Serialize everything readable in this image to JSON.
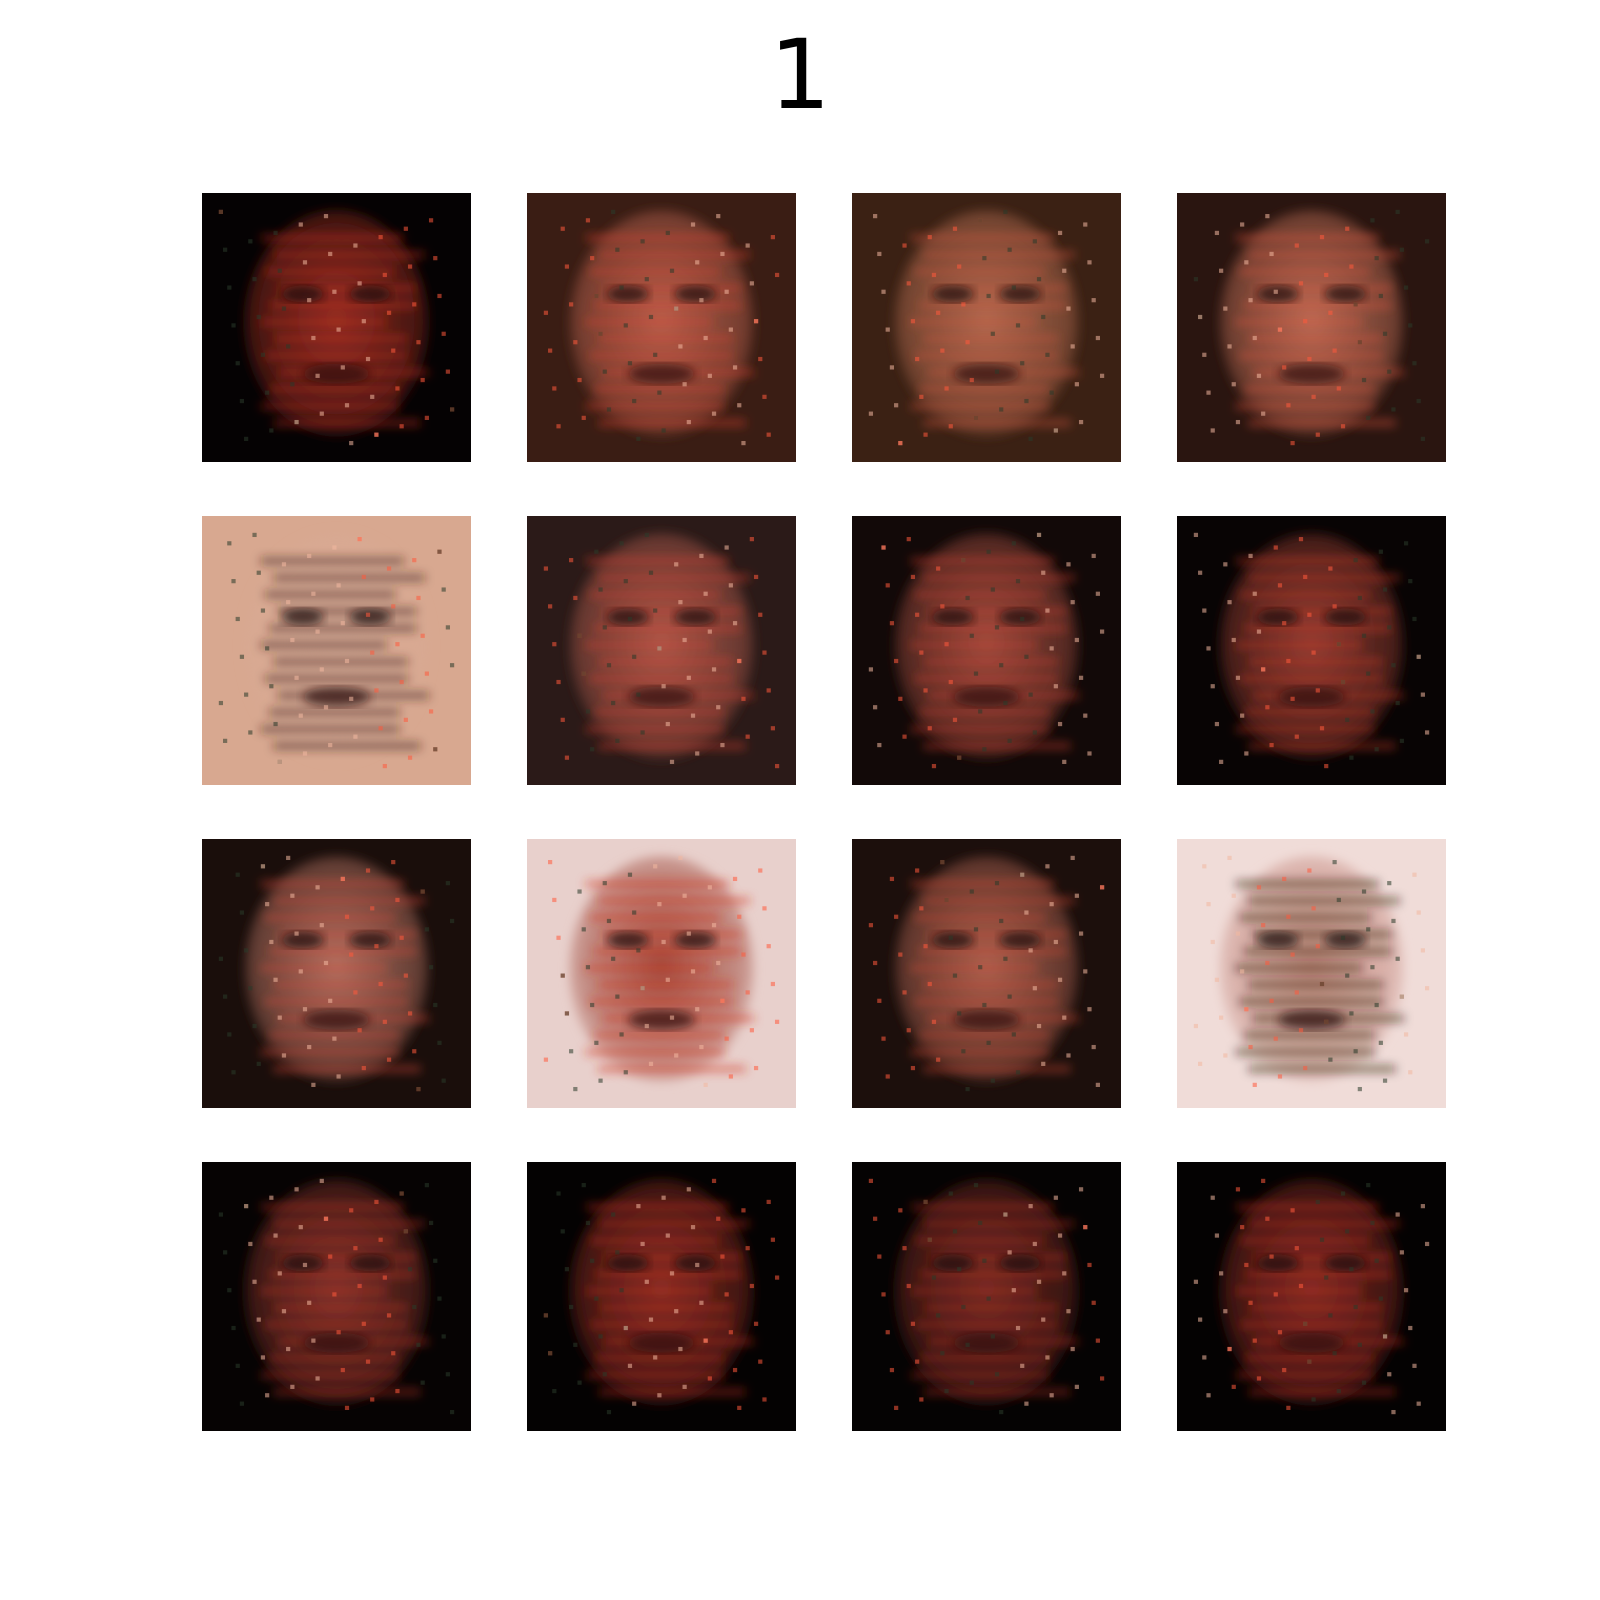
{
  "title": "1",
  "grid": {
    "rows": 4,
    "cols": 4
  },
  "samples": [
    {
      "kind": "generated-face-sample",
      "tone": "dark",
      "bg": "#050203",
      "face": "#8a2a1e",
      "accent": "#e0301e",
      "brightness": 0.35
    },
    {
      "kind": "generated-face-sample",
      "tone": "warm",
      "bg": "#3a1d14",
      "face": "#b5604d",
      "accent": "#d84030",
      "brightness": 0.6
    },
    {
      "kind": "generated-face-sample",
      "tone": "warm",
      "bg": "#3b2114",
      "face": "#b06a4f",
      "accent": "#c9533e",
      "brightness": 0.62
    },
    {
      "kind": "generated-face-sample",
      "tone": "warm",
      "bg": "#2a1510",
      "face": "#b86b54",
      "accent": "#d9543c",
      "brightness": 0.6
    },
    {
      "kind": "generated-face-sample",
      "tone": "pale",
      "bg": "#d8a890",
      "face": "#d9aa94",
      "accent": "#3b2620",
      "brightness": 0.8
    },
    {
      "kind": "generated-face-sample",
      "tone": "warm",
      "bg": "#2b1a18",
      "face": "#a8584a",
      "accent": "#d84030",
      "brightness": 0.55
    },
    {
      "kind": "generated-face-sample",
      "tone": "warm",
      "bg": "#120908",
      "face": "#9a4a3d",
      "accent": "#d6402e",
      "brightness": 0.5
    },
    {
      "kind": "generated-face-sample",
      "tone": "dark",
      "bg": "#080404",
      "face": "#8c3a30",
      "accent": "#d83a2a",
      "brightness": 0.42
    },
    {
      "kind": "generated-face-sample",
      "tone": "warm",
      "bg": "#1a0e0b",
      "face": "#b07060",
      "accent": "#d54a38",
      "brightness": 0.58
    },
    {
      "kind": "generated-face-sample",
      "tone": "bright",
      "bg": "#e8d0cc",
      "face": "#a04a3c",
      "accent": "#d03828",
      "brightness": 0.7
    },
    {
      "kind": "generated-face-sample",
      "tone": "warm",
      "bg": "#1c0f0c",
      "face": "#a8604f",
      "accent": "#d24a36",
      "brightness": 0.55
    },
    {
      "kind": "generated-face-sample",
      "tone": "bright",
      "bg": "#f0dcd8",
      "face": "#c58a80",
      "accent": "#2a1816",
      "brightness": 0.78
    },
    {
      "kind": "generated-face-sample",
      "tone": "dark",
      "bg": "#060303",
      "face": "#7a3028",
      "accent": "#d43a2a",
      "brightness": 0.38
    },
    {
      "kind": "generated-face-sample",
      "tone": "dark",
      "bg": "#040202",
      "face": "#802a20",
      "accent": "#e03422",
      "brightness": 0.36
    },
    {
      "kind": "generated-face-sample",
      "tone": "dark",
      "bg": "#050303",
      "face": "#6e2820",
      "accent": "#d03424",
      "brightness": 0.32
    },
    {
      "kind": "generated-face-sample",
      "tone": "dark",
      "bg": "#040202",
      "face": "#7a2820",
      "accent": "#e03422",
      "brightness": 0.34
    }
  ]
}
